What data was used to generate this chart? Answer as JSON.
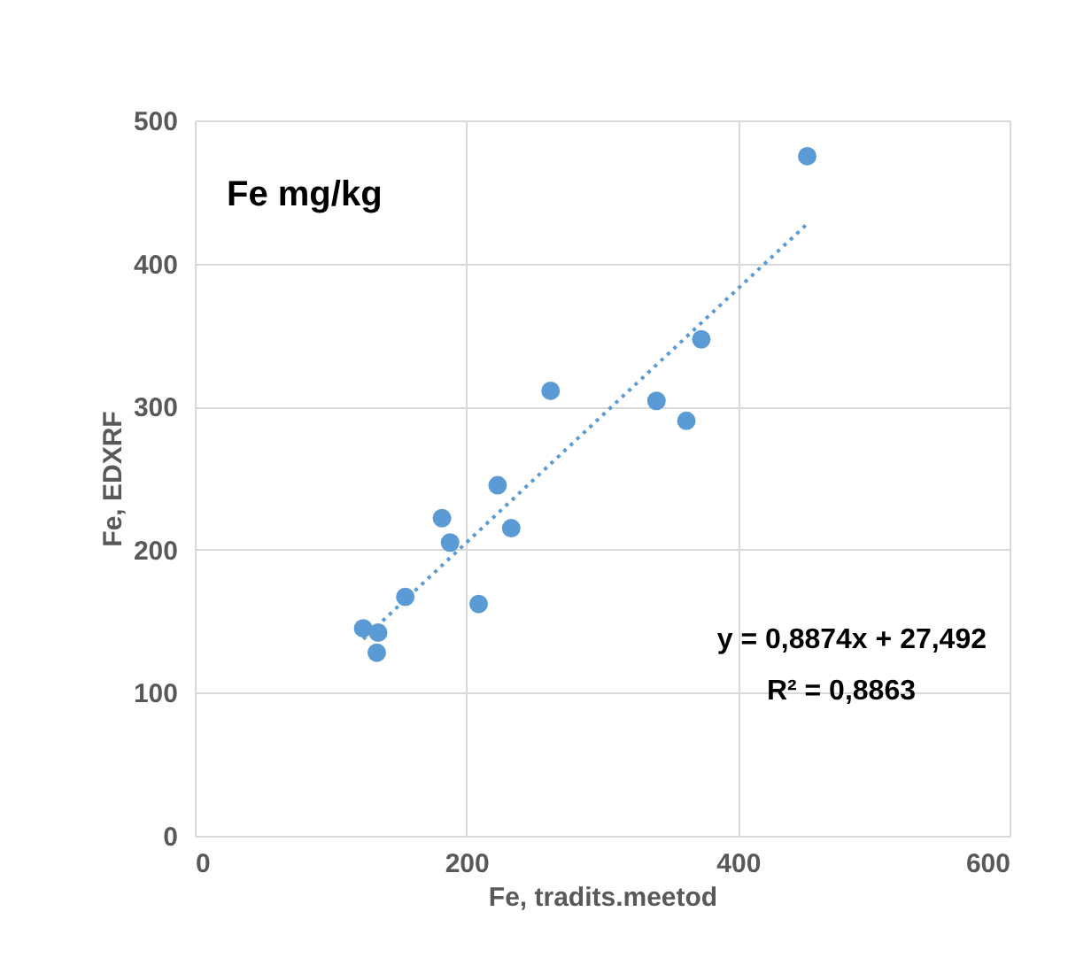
{
  "chart_data": {
    "type": "scatter",
    "title": "Fe mg/kg",
    "xlabel": "Fe,  tradits.meetod",
    "ylabel": "Fe, EDXRF",
    "x": [
      124,
      135,
      134,
      155,
      182,
      188,
      223,
      233,
      209,
      262,
      340,
      362,
      373,
      451
    ],
    "series": [
      {
        "color": "#5b9bd5",
        "values": [
          145,
          142,
          128,
          167,
          222,
          205,
          245,
          215,
          162,
          311,
          304,
          290,
          347,
          475
        ]
      },
      {
        "type": "line",
        "color": "#5b9bd5",
        "line_style": "dotted",
        "x": [
          124,
          451
        ],
        "values": [
          137.5,
          427.7
        ]
      }
    ],
    "annotations": [
      "y = 0,8874x + 27,492",
      "R² = 0,8863"
    ],
    "xlim": [
      0,
      600
    ],
    "xticks": [
      0,
      200,
      400,
      600
    ],
    "ylim": [
      0,
      500
    ],
    "yticks": [
      0,
      100,
      200,
      300,
      400,
      500
    ],
    "grid": true
  }
}
